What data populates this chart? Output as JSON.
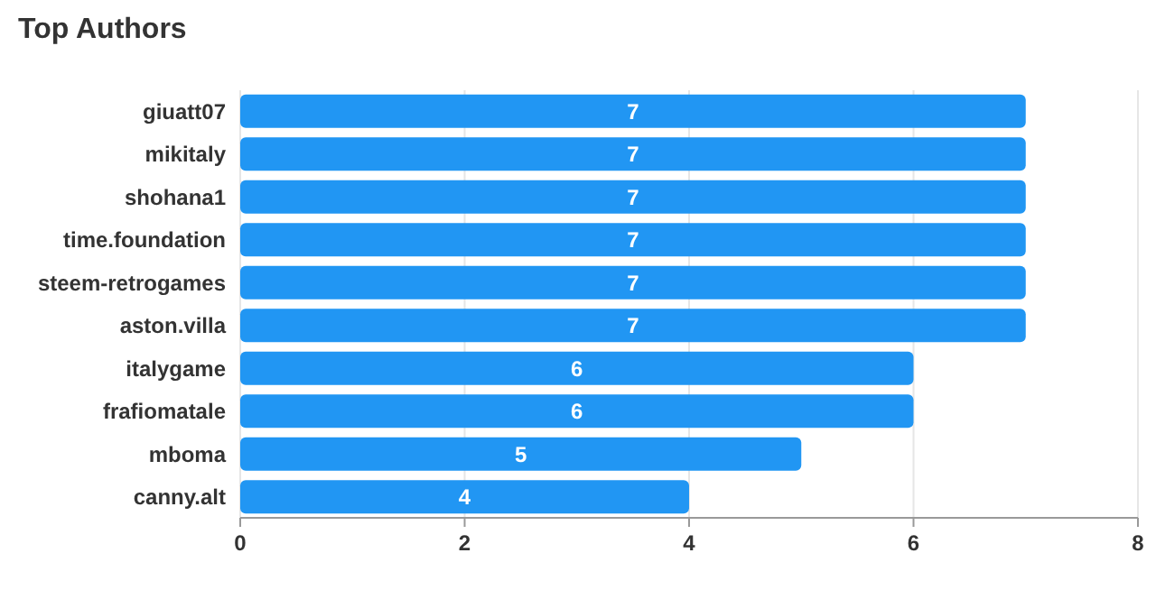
{
  "chart_data": {
    "type": "bar",
    "orientation": "horizontal",
    "title": "Top Authors",
    "categories": [
      "giuatt07",
      "mikitaly",
      "shohana1",
      "time.foundation",
      "steem-retrogames",
      "aston.villa",
      "italygame",
      "frafiomatale",
      "mboma",
      "canny.alt"
    ],
    "values": [
      7,
      7,
      7,
      7,
      7,
      7,
      6,
      6,
      5,
      4
    ],
    "color": "#2196f3",
    "xlim": [
      0,
      8
    ],
    "xticks": [
      0,
      2,
      4,
      6,
      8
    ],
    "grid": "x",
    "data_labels": true
  }
}
